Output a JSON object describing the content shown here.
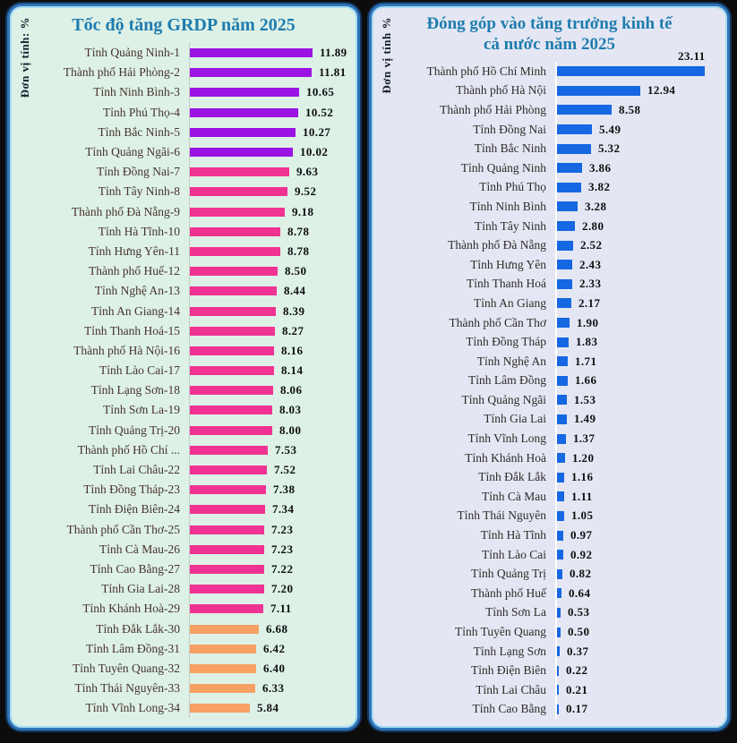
{
  "page": {
    "background_color": "#0c0c0c",
    "panel_border_outer": "#14365f",
    "panel_border_mid": "#2e74b8",
    "panel_border_inner": "#a8dcf4",
    "title_color": "#1e7cae",
    "value_color": "#0e0e0e"
  },
  "chart_data": [
    {
      "type": "bar",
      "orientation": "horizontal",
      "title": "Tốc độ tăng GRDP năm 2025",
      "title_lines": [
        "Tốc độ tăng GRDP năm 2025"
      ],
      "unit_label": "Đơn vị tính: %",
      "background_color": "#ddf1e7",
      "label_color": "#47332b",
      "grid": false,
      "legend": "none",
      "xlim": [
        0,
        12.5
      ],
      "color_bands": [
        {
          "min": 10,
          "color": "#9b13e3",
          "name": "purple"
        },
        {
          "min": 7,
          "color": "#f03392",
          "name": "pink"
        },
        {
          "min": 0,
          "color": "#f6a063",
          "name": "orange"
        }
      ],
      "above_label_indices": [],
      "categories": [
        "Tỉnh Quảng Ninh-1",
        "Thành phố Hải Phòng-2",
        "Tỉnh Ninh Bình-3",
        "Tỉnh Phú Thọ-4",
        "Tỉnh Bắc Ninh-5",
        "Tỉnh Quảng Ngãi-6",
        "Tỉnh Đồng Nai-7",
        "Tỉnh Tây Ninh-8",
        "Thành phố Đà Nẵng-9",
        "Tỉnh Hà Tĩnh-10",
        "Tỉnh Hưng Yên-11",
        "Thành phố Huế-12",
        "Tỉnh Nghệ An-13",
        "Tỉnh An Giang-14",
        "Tỉnh Thanh Hoá-15",
        "Thành phố Hà Nội-16",
        "Tỉnh Lào Cai-17",
        "Tỉnh Lạng Sơn-18",
        "Tỉnh Sơn La-19",
        "Tỉnh Quảng Trị-20",
        "Thành phố Hồ Chí ...",
        "Tỉnh Lai Châu-22",
        "Tỉnh Đồng Tháp-23",
        "Tỉnh Điện Biên-24",
        "Thành phố Cần Thơ-25",
        "Tỉnh Cà Mau-26",
        "Tỉnh Cao Bằng-27",
        "Tỉnh Gia Lai-28",
        "Tỉnh Khánh Hoà-29",
        "Tỉnh Đắk Lắk-30",
        "Tỉnh Lâm Đồng-31",
        "Tỉnh Tuyên Quang-32",
        "Tỉnh Thái Nguyên-33",
        "Tỉnh Vĩnh Long-34"
      ],
      "values": [
        "11.89",
        "11.81",
        "10.65",
        "10.52",
        "10.27",
        "10.02",
        "9.63",
        "9.52",
        "9.18",
        "8.78",
        "8.78",
        "8.50",
        "8.44",
        "8.39",
        "8.27",
        "8.16",
        "8.14",
        "8.06",
        "8.03",
        "8.00",
        "7.53",
        "7.52",
        "7.38",
        "7.34",
        "7.23",
        "7.23",
        "7.22",
        "7.20",
        "7.11",
        "6.68",
        "6.42",
        "6.40",
        "6.33",
        "5.84"
      ]
    },
    {
      "type": "bar",
      "orientation": "horizontal",
      "title": "Đóng góp vào tăng trưởng kinh tế cả nước năm 2025",
      "title_lines": [
        "Đóng góp vào tăng trưởng kinh tế",
        "cả nước năm 2025"
      ],
      "unit_label": "Đơn vị tính %",
      "background_color": "#e4e7f3",
      "label_color": "#2e2b28",
      "grid": false,
      "legend": "none",
      "xlim": [
        0,
        25
      ],
      "bar_color": "#1567e2",
      "above_label_indices": [
        0
      ],
      "categories": [
        "Thành phố Hồ Chí Minh",
        "Thành phố Hà Nội",
        "Thành phố Hải Phòng",
        "Tỉnh Đồng Nai",
        "Tỉnh Bắc Ninh",
        "Tỉnh Quảng Ninh",
        "Tỉnh Phú Thọ",
        "Tỉnh Ninh Bình",
        "Tỉnh Tây Ninh",
        "Thành phố Đà Nẵng",
        "Tỉnh Hưng Yên",
        "Tỉnh Thanh Hoá",
        "Tỉnh An Giang",
        "Thành phố Cần Thơ",
        "Tỉnh Đồng Tháp",
        "Tỉnh Nghệ An",
        "Tỉnh Lâm Đồng",
        "Tỉnh Quảng Ngãi",
        "Tỉnh Gia Lai",
        "Tỉnh Vĩnh Long",
        "Tỉnh Khánh Hoà",
        "Tỉnh Đắk Lắk",
        "Tỉnh Cà Mau",
        "Tỉnh Thái Nguyên",
        "Tỉnh Hà Tĩnh",
        "Tỉnh Lào Cai",
        "Tỉnh Quảng Trị",
        "Thành phố Huế",
        "Tỉnh Sơn La",
        "Tỉnh Tuyên Quang",
        "Tỉnh Lạng Sơn",
        "Tỉnh Điện Biên",
        "Tỉnh Lai Châu",
        "Tỉnh Cao Bằng"
      ],
      "values": [
        "23.11",
        "12.94",
        "8.58",
        "5.49",
        "5.32",
        "3.86",
        "3.82",
        "3.28",
        "2.80",
        "2.52",
        "2.43",
        "2.33",
        "2.17",
        "1.90",
        "1.83",
        "1.71",
        "1.66",
        "1.53",
        "1.49",
        "1.37",
        "1.20",
        "1.16",
        "1.11",
        "1.05",
        "0.97",
        "0.92",
        "0.82",
        "0.64",
        "0.53",
        "0.50",
        "0.37",
        "0.22",
        "0.21",
        "0.17"
      ]
    }
  ]
}
